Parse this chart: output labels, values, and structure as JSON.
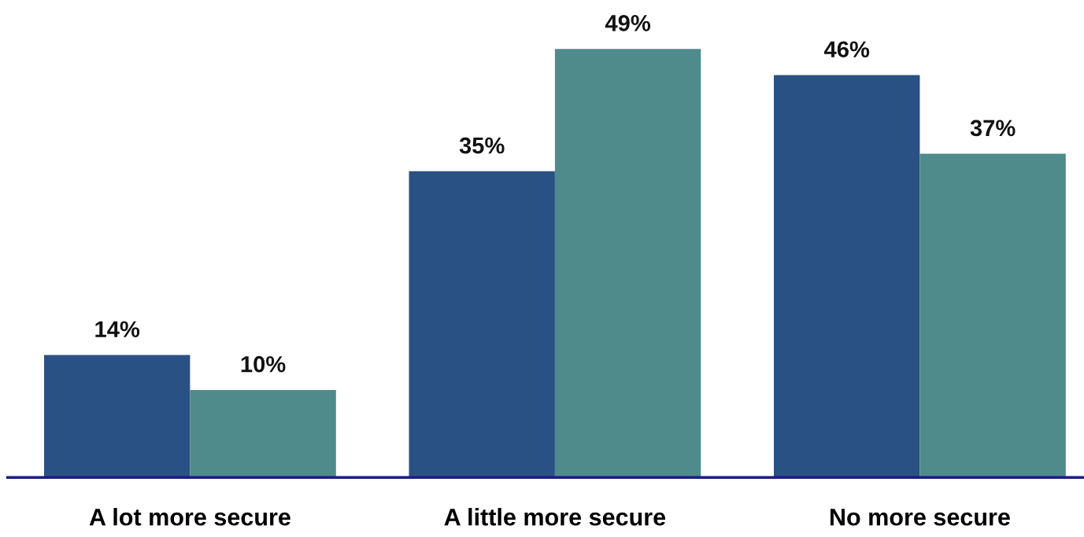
{
  "chart_data": {
    "type": "bar",
    "categories": [
      "A lot more secure",
      "A little more secure",
      "No more secure"
    ],
    "series": [
      {
        "color": "#2a5183",
        "values": [
          14,
          35,
          46
        ],
        "value_labels": [
          "14%",
          "35%",
          "46%"
        ]
      },
      {
        "color": "#508b8b",
        "values": [
          10,
          49,
          37
        ],
        "value_labels": [
          "10%",
          "49%",
          "37%"
        ]
      }
    ],
    "tick_labels": "x"
  }
}
